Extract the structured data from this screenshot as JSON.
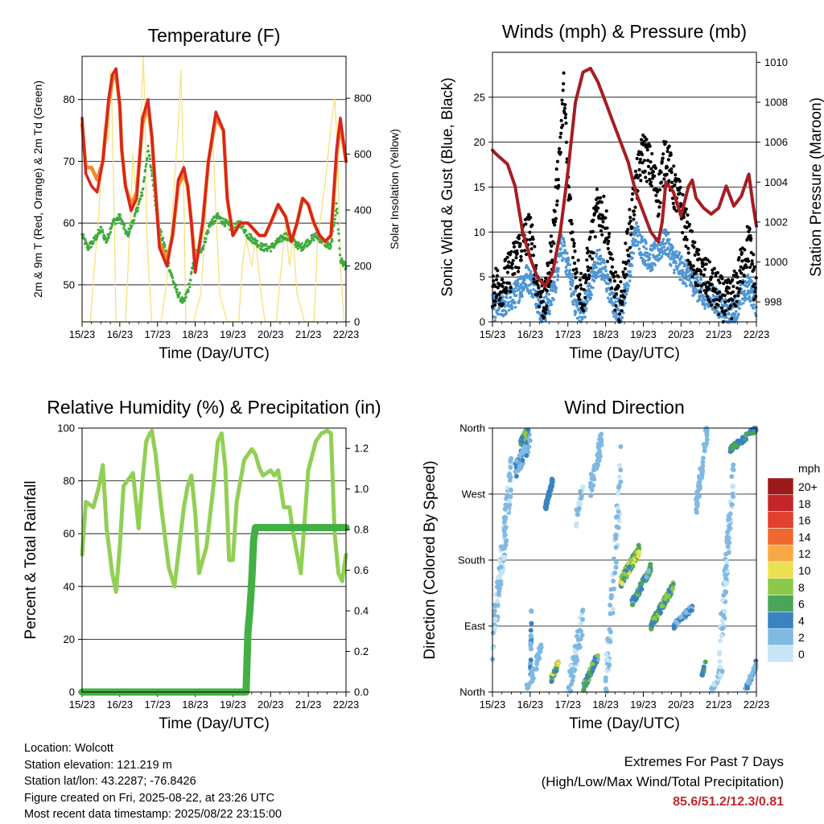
{
  "x_tick_labels": [
    "15/23",
    "16/23",
    "17/23",
    "18/23",
    "19/23",
    "20/23",
    "21/23",
    "22/23"
  ],
  "wind_speed_legend": {
    "unit_label": "mph",
    "levels": [
      "20+",
      "18",
      "16",
      "14",
      "12",
      "10",
      "8",
      "6",
      "4",
      "2",
      "0"
    ],
    "colors": [
      "#9e1a1a",
      "#c4252b",
      "#e2412f",
      "#f0682f",
      "#f7a845",
      "#ece050",
      "#8cc84a",
      "#4ba558",
      "#3a82c0",
      "#80b9e2",
      "#c6e5f5"
    ]
  },
  "chart_data": [
    {
      "type": "line",
      "title": "Temperature (F)",
      "xlabel": "Time (Day/UTC)",
      "ylabel": "2m & 9m T (Red, Orange) & 2m Td (Green)",
      "ylabel_right": "Solar Insolation (Yellow)",
      "xlim_days": [
        0,
        7
      ],
      "ylim": [
        44,
        87
      ],
      "y_ticks": [
        50,
        60,
        70,
        80
      ],
      "ylim_right": [
        0,
        950
      ],
      "y_ticks_right": [
        0,
        200,
        400,
        600,
        800
      ],
      "grid": "horizontal",
      "colors": {
        "temp_2m": "#d7261e",
        "temp_9m": "#f08a25",
        "dewpoint": "#3eab3c",
        "solar": "#f6e27a"
      },
      "series": [
        {
          "key": "temp_2m",
          "x": [
            0,
            0.1,
            0.25,
            0.4,
            0.55,
            0.7,
            0.8,
            0.9,
            1.0,
            1.05,
            1.15,
            1.3,
            1.45,
            1.6,
            1.75,
            1.85,
            1.95,
            2.05,
            2.25,
            2.4,
            2.55,
            2.7,
            2.8,
            2.9,
            3.0,
            3.1,
            3.2,
            3.35,
            3.55,
            3.75,
            3.85,
            4.0,
            4.2,
            4.4,
            4.55,
            4.7,
            4.85,
            5.0,
            5.2,
            5.4,
            5.55,
            5.7,
            5.85,
            6.0,
            6.15,
            6.3,
            6.45,
            6.6,
            6.75,
            6.85,
            7.0
          ],
          "values": [
            77,
            68,
            66,
            65,
            70,
            80,
            84,
            85,
            79,
            72,
            66,
            62,
            64,
            77,
            80,
            74,
            65,
            56,
            53,
            58,
            67,
            69,
            66,
            60,
            52,
            56,
            60,
            70,
            78,
            75,
            64,
            58,
            60,
            60,
            59,
            58,
            58,
            60,
            63,
            61,
            57,
            60,
            64,
            63,
            60,
            58,
            57,
            58,
            72,
            77,
            70
          ]
        },
        {
          "key": "temp_9m",
          "x": [
            0,
            0.1,
            0.25,
            0.4,
            0.55,
            0.7,
            0.8,
            0.9,
            1.0,
            1.05,
            1.15,
            1.3,
            1.45,
            1.6,
            1.75,
            1.85,
            1.95,
            2.05,
            2.25,
            2.4,
            2.55,
            2.7,
            2.8,
            2.9,
            3.0,
            3.1,
            3.2,
            3.35,
            3.55,
            3.75,
            3.85,
            4.0,
            4.2,
            4.4,
            4.55,
            4.7,
            4.85,
            5.0,
            5.2,
            5.4,
            5.55,
            5.7,
            5.85,
            6.0,
            6.15,
            6.3,
            6.45,
            6.6,
            6.75,
            6.85,
            7.0
          ],
          "values": [
            76,
            69,
            69,
            67,
            70,
            79,
            83,
            84,
            79,
            72,
            66,
            63,
            65,
            76,
            79,
            74,
            65,
            57,
            54,
            58,
            66,
            68,
            66,
            60,
            53,
            56,
            60,
            70,
            77,
            75,
            64,
            58,
            60,
            60,
            59,
            58,
            58,
            60,
            63,
            61,
            57,
            60,
            64,
            63,
            60,
            58,
            57,
            58,
            71,
            76,
            70
          ]
        },
        {
          "key": "dewpoint",
          "x": [
            0,
            0.15,
            0.3,
            0.5,
            0.65,
            0.8,
            1.0,
            1.2,
            1.4,
            1.6,
            1.75,
            1.9,
            2.0,
            2.2,
            2.35,
            2.5,
            2.7,
            2.85,
            3.0,
            3.2,
            3.4,
            3.6,
            3.8,
            4.0,
            4.2,
            4.4,
            4.6,
            4.8,
            5.0,
            5.2,
            5.4,
            5.6,
            5.8,
            6.0,
            6.2,
            6.4,
            6.6,
            6.75,
            6.85,
            7.0
          ],
          "values": [
            58,
            56,
            57,
            59,
            57,
            60,
            61,
            58,
            61,
            65,
            72,
            66,
            60,
            56,
            52,
            49,
            47,
            50,
            55,
            56,
            60,
            61,
            60,
            59,
            60,
            58,
            57,
            56,
            56,
            57,
            58,
            57,
            56,
            57,
            58,
            57,
            56,
            63,
            54,
            53
          ]
        },
        {
          "key": "solar",
          "x": [
            0,
            0.22,
            0.3,
            0.45,
            0.58,
            0.7,
            0.75,
            0.78,
            0.85,
            0.9,
            1.15,
            1.22,
            1.35,
            1.45,
            1.55,
            1.62,
            1.66,
            1.72,
            1.85,
            2.1,
            2.25,
            2.4,
            2.55,
            2.62,
            2.68,
            2.75,
            2.95,
            3.15,
            3.25,
            3.35,
            3.45,
            3.55,
            3.65,
            3.85,
            4.15,
            4.25,
            4.35,
            4.5,
            4.6,
            4.75,
            4.85,
            5.15,
            5.25,
            5.4,
            5.5,
            5.6,
            5.7,
            5.9,
            6.15,
            6.25,
            6.45,
            6.6,
            6.7,
            6.78,
            6.85,
            6.95
          ],
          "values": [
            0,
            0,
            150,
            400,
            700,
            650,
            900,
            850,
            400,
            0,
            0,
            200,
            600,
            400,
            700,
            950,
            800,
            300,
            0,
            0,
            150,
            400,
            700,
            900,
            600,
            0,
            0,
            100,
            300,
            600,
            700,
            400,
            100,
            0,
            0,
            200,
            300,
            200,
            300,
            100,
            0,
            0,
            150,
            350,
            200,
            300,
            100,
            0,
            0,
            300,
            500,
            700,
            800,
            600,
            200,
            0
          ]
        }
      ]
    },
    {
      "type": "scatter",
      "title": "Winds (mph) & Pressure (mb)",
      "xlabel": "Time (Day/UTC)",
      "ylabel": "Sonic Wind & Gust (Blue, Black)",
      "ylabel_right": "Station Pressure (Maroon)",
      "xlim_days": [
        0,
        7
      ],
      "ylim": [
        0,
        30
      ],
      "y_ticks": [
        0,
        5,
        10,
        15,
        20,
        25
      ],
      "ylim_right": [
        997,
        1010.5
      ],
      "y_ticks_right": [
        998,
        1000,
        1002,
        1004,
        1006,
        1008,
        1010
      ],
      "grid": "horizontal",
      "colors": {
        "wind": "#4f96d2",
        "gust": "#000000",
        "pressure": "#a51e22"
      },
      "series": [
        {
          "key": "wind",
          "x": [
            0,
            0.3,
            0.6,
            0.9,
            1.1,
            1.3,
            1.5,
            1.7,
            1.8,
            2.0,
            2.2,
            2.4,
            2.6,
            2.8,
            3.0,
            3.2,
            3.4,
            3.6,
            3.8,
            4.0,
            4.2,
            4.4,
            4.6,
            4.8,
            5.0,
            5.2,
            5.4,
            5.6,
            5.8,
            6.0,
            6.2,
            6.4,
            6.6,
            6.8,
            7.0
          ],
          "values": [
            1.5,
            2,
            3,
            5,
            4,
            1,
            2,
            5,
            9,
            6,
            2,
            1,
            4,
            7,
            5,
            2,
            1,
            5,
            10,
            8,
            7,
            8,
            9,
            7,
            6,
            5,
            4,
            3,
            3,
            2,
            1,
            1,
            3,
            4,
            2
          ]
        },
        {
          "key": "gust",
          "x": [
            0,
            0.2,
            0.4,
            0.6,
            0.8,
            1.0,
            1.2,
            1.4,
            1.6,
            1.8,
            1.9,
            2.0,
            2.2,
            2.4,
            2.6,
            2.8,
            3.0,
            3.2,
            3.4,
            3.6,
            3.8,
            4.0,
            4.2,
            4.4,
            4.6,
            4.8,
            5.0,
            5.2,
            5.4,
            5.6,
            5.8,
            6.0,
            6.2,
            6.4,
            6.6,
            6.8,
            7.0
          ],
          "values": [
            4,
            4,
            5,
            7,
            9,
            10,
            4,
            2,
            9,
            20,
            26,
            15,
            6,
            3,
            8,
            13,
            11,
            4,
            2,
            9,
            15,
            19,
            17,
            14,
            19,
            15,
            13,
            9,
            6,
            5,
            4,
            3,
            2,
            3,
            6,
            9,
            3
          ]
        },
        {
          "key": "pressure",
          "x": [
            0,
            0.1,
            0.4,
            0.6,
            0.8,
            1.0,
            1.2,
            1.4,
            1.6,
            1.8,
            2.0,
            2.2,
            2.4,
            2.6,
            2.8,
            3.0,
            3.2,
            3.4,
            3.6,
            3.8,
            4.0,
            4.2,
            4.4,
            4.5,
            4.6,
            4.8,
            5.0,
            5.2,
            5.3,
            5.4,
            5.6,
            5.8,
            6.0,
            6.2,
            6.4,
            6.6,
            6.8,
            6.9,
            7.0
          ],
          "values": [
            1005.6,
            1005.4,
            1004.9,
            1003.8,
            1001.5,
            1000.2,
            999.2,
            998.8,
            999.5,
            1001.5,
            1004.5,
            1008,
            1009.5,
            1009.7,
            1009,
            1008,
            1007,
            1006,
            1005,
            1003.5,
            1002.5,
            1001.5,
            1001,
            1002,
            1004,
            1003.5,
            1002.3,
            1003.8,
            1004.1,
            1003.2,
            1002.7,
            1002.4,
            1002.7,
            1003.8,
            1002.8,
            1003.3,
            1004.4,
            1003,
            1001.8
          ]
        }
      ]
    },
    {
      "type": "line",
      "title": "Relative Humidity (%) & Precipitation (in)",
      "xlabel": "Time (Day/UTC)",
      "ylabel": "Percent & Total Rainfall",
      "xlim_days": [
        0,
        7
      ],
      "ylim": [
        0,
        100
      ],
      "y_ticks": [
        0,
        20,
        40,
        60,
        80,
        100
      ],
      "ylim_right": [
        0,
        1.3
      ],
      "y_ticks_right": [
        "0.0",
        "0.2",
        "0.4",
        "0.6",
        "0.8",
        "1.0",
        "1.2"
      ],
      "grid": "horizontal",
      "colors": {
        "humidity": "#92cf55",
        "precipitation": "#43b043"
      },
      "series": [
        {
          "key": "humidity",
          "x": [
            0,
            0.1,
            0.3,
            0.45,
            0.55,
            0.65,
            0.8,
            0.9,
            1.0,
            1.1,
            1.2,
            1.35,
            1.5,
            1.6,
            1.7,
            1.8,
            1.85,
            1.95,
            2.1,
            2.3,
            2.45,
            2.55,
            2.7,
            2.8,
            2.9,
            3.0,
            3.1,
            3.3,
            3.5,
            3.6,
            3.7,
            3.8,
            3.9,
            4.0,
            4.1,
            4.3,
            4.5,
            4.6,
            4.7,
            4.8,
            5.0,
            5.1,
            5.2,
            5.35,
            5.5,
            5.6,
            5.8,
            6.0,
            6.2,
            6.35,
            6.5,
            6.6,
            6.7,
            6.8,
            6.9,
            7.0
          ],
          "values": [
            52,
            72,
            70,
            78,
            86,
            62,
            45,
            38,
            55,
            78,
            80,
            83,
            62,
            80,
            95,
            98,
            99,
            90,
            70,
            47,
            40,
            52,
            70,
            78,
            82,
            68,
            45,
            55,
            80,
            95,
            98,
            85,
            50,
            50,
            72,
            88,
            92,
            90,
            85,
            82,
            84,
            82,
            84,
            70,
            70,
            60,
            45,
            84,
            95,
            98,
            99,
            98,
            60,
            45,
            42,
            52
          ]
        },
        {
          "key": "precipitation",
          "unit": "in",
          "x": [
            0,
            4.35,
            4.4,
            4.45,
            4.5,
            4.55,
            4.6,
            7.0
          ],
          "values": [
            0.0,
            0.0,
            0.3,
            0.4,
            0.55,
            0.75,
            0.81,
            0.81
          ]
        }
      ]
    },
    {
      "type": "scatter",
      "title": "Wind Direction",
      "xlabel": "Time (Day/UTC)",
      "ylabel": "Direction (Colored By Speed)",
      "xlim_days": [
        0,
        7
      ],
      "y_ticks": [
        "North",
        "East",
        "South",
        "West",
        "North"
      ],
      "grid": "horizontal"
    }
  ],
  "station_info": {
    "location": "Location: Wolcott",
    "elevation": "Station elevation: 121.219 m",
    "latlon": "Station lat/lon: 43.2287; -76.8426",
    "created": "Figure created on Fri, 2025-08-22, at 23:26 UTC",
    "recent": "Most recent data timestamp: 2025/08/22 23:15:00"
  },
  "extremes": {
    "line1": "Extremes For Past 7 Days",
    "line2": "(High/Low/Max Wind/Total Precipitation)",
    "values": "85.6/51.2/12.3/0.81"
  }
}
